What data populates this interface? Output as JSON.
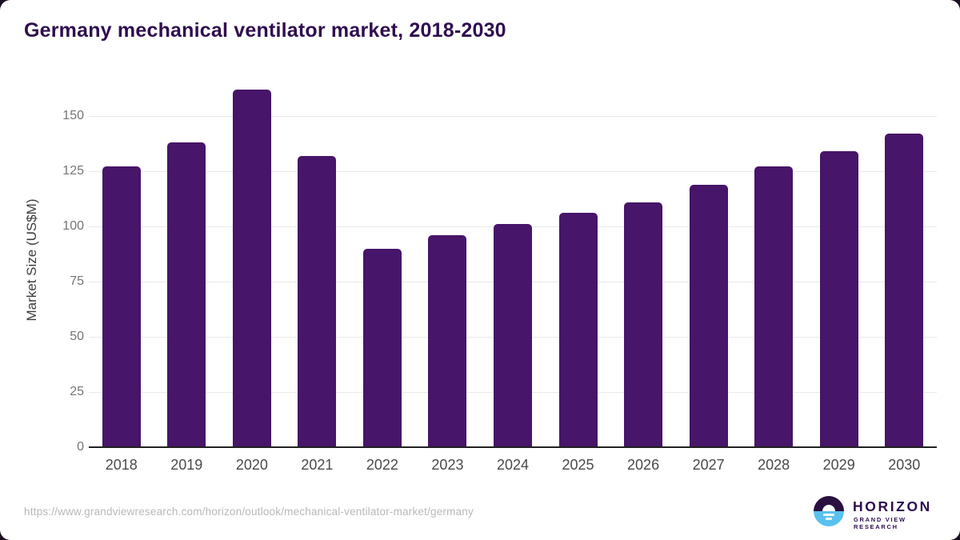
{
  "title": "Germany mechanical ventilator market, 2018-2030",
  "footer": {
    "source_url": "https://www.grandviewresearch.com/horizon/outlook/mechanical-ventilator-market/germany",
    "logo": {
      "brand": "HORIZON",
      "sub_brand": "GRAND VIEW RESEARCH"
    }
  },
  "colors": {
    "title_text": "#2f0e4e",
    "bar_fill": "#471569",
    "gridline": "#e9e9e9",
    "axis_line": "#212121",
    "y_tick_text": "#757575",
    "x_tick_text": "#4a4a4a",
    "axis_title_text": "#3d3d3d",
    "url_text": "#b8b8b8",
    "logo_dark": "#2a1040",
    "logo_blue": "#5ac1ee",
    "logo_text": "#2e0d4e",
    "card_background": "#ffffff",
    "page_background": "#1b1022"
  },
  "chart_data": {
    "type": "bar",
    "title": "Germany mechanical ventilator market, 2018-2030",
    "categories": [
      "2018",
      "2019",
      "2020",
      "2021",
      "2022",
      "2023",
      "2024",
      "2025",
      "2026",
      "2027",
      "2028",
      "2029",
      "2030"
    ],
    "values": [
      127,
      138,
      162,
      132,
      90,
      96,
      101,
      106,
      111,
      119,
      127,
      134,
      142
    ],
    "xlabel": "",
    "ylabel": "Market Size (US$M)",
    "ylim": [
      0,
      165
    ],
    "yticks": [
      0,
      25,
      50,
      75,
      100,
      125,
      150
    ],
    "grid": true,
    "legend": false
  }
}
